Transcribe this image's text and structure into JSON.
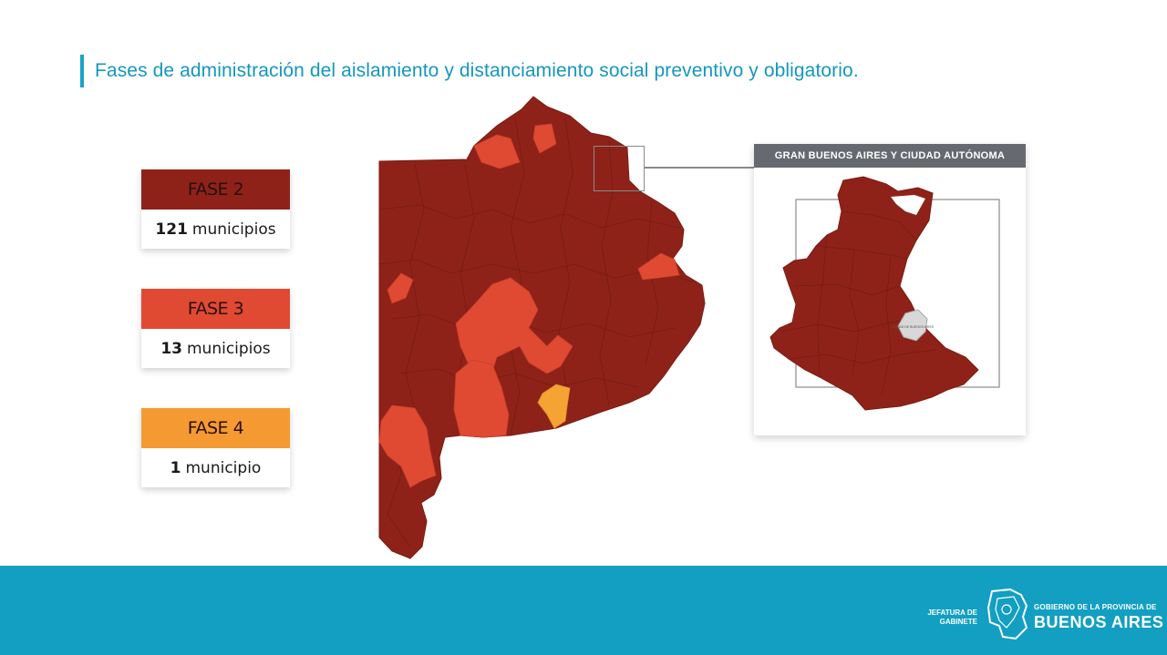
{
  "title": "Fases de administración del aislamiento y distanciamiento social preventivo y obligatorio.",
  "legend": [
    {
      "phase": "FASE 2",
      "count": "121",
      "unit": "municipios",
      "color": "#8e2219"
    },
    {
      "phase": "FASE 3",
      "count": "13",
      "unit": "municipios",
      "color": "#e04a32"
    },
    {
      "phase": "FASE 4",
      "count": "1",
      "unit": "municipio",
      "color": "#f59a32"
    }
  ],
  "inset": {
    "title": "GRAN BUENOS AIRES Y CIUDAD AUTÓNOMA",
    "city_label": "CIUDAD DE BUENOS AIRES"
  },
  "footer": {
    "left_org": "JEFATURA DE GABINETE",
    "right_org_small": "GOBIERNO DE LA PROVINCIA DE",
    "right_org_big": "BUENOS AIRES"
  },
  "colors": {
    "phase2": "#8e2219",
    "phase3": "#e04a32",
    "phase4": "#f5a434",
    "accent": "#129fc2"
  }
}
